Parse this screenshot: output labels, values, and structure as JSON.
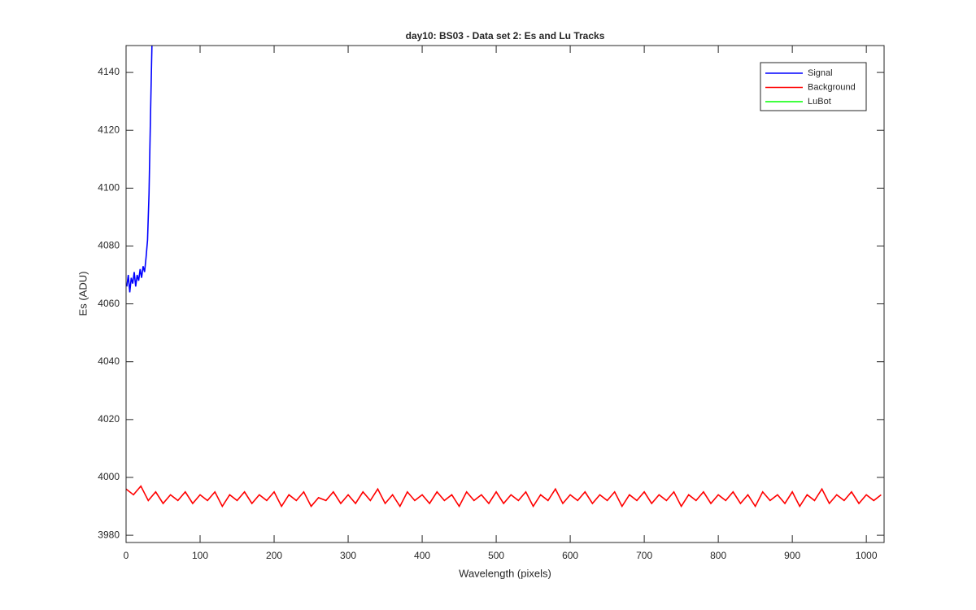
{
  "chart_data": {
    "type": "line",
    "title": "day10: BS03 - Data set 2: Es and Lu Tracks",
    "xlabel": "Wavelength (pixels)",
    "ylabel": "Es (ADU)",
    "xlim": [
      0,
      1024
    ],
    "ylim": [
      3977.5,
      4149.3
    ],
    "xticks": [
      0,
      100,
      200,
      300,
      400,
      500,
      600,
      700,
      800,
      900,
      1000
    ],
    "yticks": [
      3980,
      4000,
      4020,
      4040,
      4060,
      4080,
      4100,
      4120,
      4140
    ],
    "legend": "upper right",
    "series": [
      {
        "name": "Signal",
        "color": "#0000ff",
        "x": [
          1,
          3,
          5,
          7,
          9,
          11,
          13,
          15,
          17,
          19,
          21,
          23,
          25,
          27,
          29,
          31,
          33,
          35
        ],
        "values": [
          4066,
          4070,
          4064,
          4069,
          4067,
          4071,
          4066,
          4070,
          4068,
          4072,
          4069,
          4073,
          4071,
          4076,
          4082,
          4098,
          4125,
          4150
        ]
      },
      {
        "name": "Background",
        "color": "#ff0000",
        "x": [
          0,
          10,
          20,
          30,
          40,
          50,
          60,
          70,
          80,
          90,
          100,
          110,
          120,
          130,
          140,
          150,
          160,
          170,
          180,
          190,
          200,
          210,
          220,
          230,
          240,
          250,
          260,
          270,
          280,
          290,
          300,
          310,
          320,
          330,
          340,
          350,
          360,
          370,
          380,
          390,
          400,
          410,
          420,
          430,
          440,
          450,
          460,
          470,
          480,
          490,
          500,
          510,
          520,
          530,
          540,
          550,
          560,
          570,
          580,
          590,
          600,
          610,
          620,
          630,
          640,
          650,
          660,
          670,
          680,
          690,
          700,
          710,
          720,
          730,
          740,
          750,
          760,
          770,
          780,
          790,
          800,
          810,
          820,
          830,
          840,
          850,
          860,
          870,
          880,
          890,
          900,
          910,
          920,
          930,
          940,
          950,
          960,
          970,
          980,
          990,
          1000,
          1010,
          1020
        ],
        "values": [
          3996,
          3994,
          3997,
          3992,
          3995,
          3991,
          3994,
          3992,
          3995,
          3991,
          3994,
          3992,
          3995,
          3990,
          3994,
          3992,
          3995,
          3991,
          3994,
          3992,
          3995,
          3990,
          3994,
          3992,
          3995,
          3990,
          3993,
          3992,
          3995,
          3991,
          3994,
          3991,
          3995,
          3992,
          3996,
          3991,
          3994,
          3990,
          3995,
          3992,
          3994,
          3991,
          3995,
          3992,
          3994,
          3990,
          3995,
          3992,
          3994,
          3991,
          3995,
          3991,
          3994,
          3992,
          3995,
          3990,
          3994,
          3992,
          3996,
          3991,
          3994,
          3992,
          3995,
          3991,
          3994,
          3992,
          3995,
          3990,
          3994,
          3992,
          3995,
          3991,
          3994,
          3992,
          3995,
          3990,
          3994,
          3992,
          3995,
          3991,
          3994,
          3992,
          3995,
          3991,
          3994,
          3990,
          3995,
          3992,
          3994,
          3991,
          3995,
          3990,
          3994,
          3992,
          3996,
          3991,
          3994,
          3992,
          3995,
          3991,
          3994,
          3992,
          3994
        ]
      },
      {
        "name": "LuBot",
        "color": "#00ff00",
        "x": [],
        "values": []
      }
    ]
  }
}
